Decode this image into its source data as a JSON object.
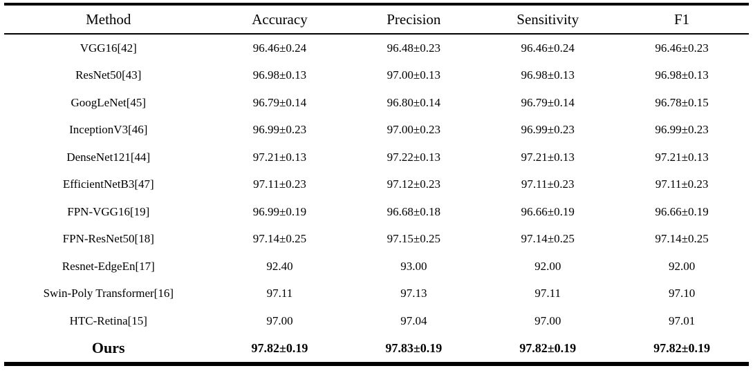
{
  "table": {
    "columns": [
      "Method",
      "Accuracy",
      "Precision",
      "Sensitivity",
      "F1"
    ],
    "rows": [
      {
        "method": "VGG16[42]",
        "values": [
          "96.46±0.24",
          "96.48±0.23",
          "96.46±0.24",
          "96.46±0.23"
        ],
        "bold": false
      },
      {
        "method": "ResNet50[43]",
        "values": [
          "96.98±0.13",
          "97.00±0.13",
          "96.98±0.13",
          "96.98±0.13"
        ],
        "bold": false
      },
      {
        "method": "GoogLeNet[45]",
        "values": [
          "96.79±0.14",
          "96.80±0.14",
          "96.79±0.14",
          "96.78±0.15"
        ],
        "bold": false
      },
      {
        "method": "InceptionV3[46]",
        "values": [
          "96.99±0.23",
          "97.00±0.23",
          "96.99±0.23",
          "96.99±0.23"
        ],
        "bold": false
      },
      {
        "method": "DenseNet121[44]",
        "values": [
          "97.21±0.13",
          "97.22±0.13",
          "97.21±0.13",
          "97.21±0.13"
        ],
        "bold": false
      },
      {
        "method": "EfficientNetB3[47]",
        "values": [
          "97.11±0.23",
          "97.12±0.23",
          "97.11±0.23",
          "97.11±0.23"
        ],
        "bold": false
      },
      {
        "method": "FPN-VGG16[19]",
        "values": [
          "96.99±0.19",
          "96.68±0.18",
          "96.66±0.19",
          "96.66±0.19"
        ],
        "bold": false
      },
      {
        "method": "FPN-ResNet50[18]",
        "values": [
          "97.14±0.25",
          "97.15±0.25",
          "97.14±0.25",
          "97.14±0.25"
        ],
        "bold": false
      },
      {
        "method": "Resnet-EdgeEn[17]",
        "values": [
          "92.40",
          "93.00",
          "92.00",
          "92.00"
        ],
        "bold": false
      },
      {
        "method": "Swin-Poly Transformer[16]",
        "values": [
          "97.11",
          "97.13",
          "97.11",
          "97.10"
        ],
        "bold": false
      },
      {
        "method": "HTC-Retina[15]",
        "values": [
          "97.00",
          "97.04",
          "97.00",
          "97.01"
        ],
        "bold": false
      },
      {
        "method": "Ours",
        "values": [
          "97.82±0.19",
          "97.83±0.19",
          "97.82±0.19",
          "97.82±0.19"
        ],
        "bold": true
      }
    ]
  },
  "chart_data": {
    "type": "table",
    "title": "",
    "columns": [
      "Method",
      "Accuracy",
      "Precision",
      "Sensitivity",
      "F1"
    ],
    "rows": [
      [
        "VGG16[42]",
        "96.46±0.24",
        "96.48±0.23",
        "96.46±0.24",
        "96.46±0.23"
      ],
      [
        "ResNet50[43]",
        "96.98±0.13",
        "97.00±0.13",
        "96.98±0.13",
        "96.98±0.13"
      ],
      [
        "GoogLeNet[45]",
        "96.79±0.14",
        "96.80±0.14",
        "96.79±0.14",
        "96.78±0.15"
      ],
      [
        "InceptionV3[46]",
        "96.99±0.23",
        "97.00±0.23",
        "96.99±0.23",
        "96.99±0.23"
      ],
      [
        "DenseNet121[44]",
        "97.21±0.13",
        "97.22±0.13",
        "97.21±0.13",
        "97.21±0.13"
      ],
      [
        "EfficientNetB3[47]",
        "97.11±0.23",
        "97.12±0.23",
        "97.11±0.23",
        "97.11±0.23"
      ],
      [
        "FPN-VGG16[19]",
        "96.99±0.19",
        "96.68±0.18",
        "96.66±0.19",
        "96.66±0.19"
      ],
      [
        "FPN-ResNet50[18]",
        "97.14±0.25",
        "97.15±0.25",
        "97.14±0.25",
        "97.14±0.25"
      ],
      [
        "Resnet-EdgeEn[17]",
        "92.40",
        "93.00",
        "92.00",
        "92.00"
      ],
      [
        "Swin-Poly Transformer[16]",
        "97.11",
        "97.13",
        "97.11",
        "97.10"
      ],
      [
        "HTC-Retina[15]",
        "97.00",
        "97.04",
        "97.00",
        "97.01"
      ],
      [
        "Ours",
        "97.82±0.19",
        "97.83±0.19",
        "97.82±0.19",
        "97.82±0.19"
      ]
    ]
  },
  "colors": {
    "background": "#ffffff",
    "text": "#000000",
    "rule": "#000000"
  }
}
